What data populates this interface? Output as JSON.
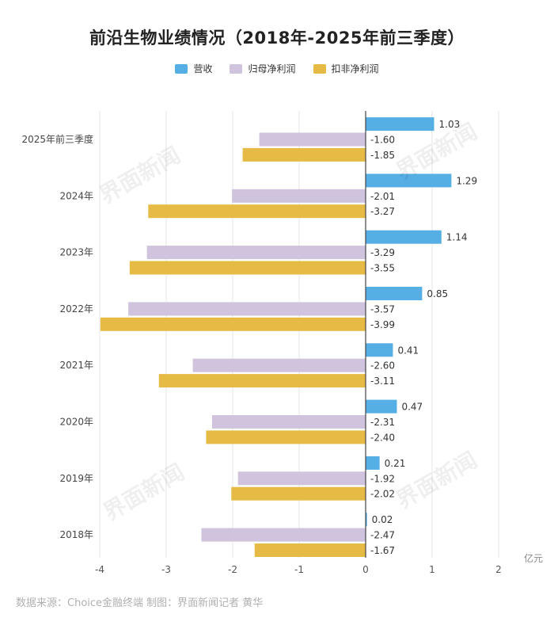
{
  "title": "前沿生物业绩情况（2018年-2025年前三季度）",
  "unit": "亿元",
  "footer": "数据来源：Choice金融终端 制图：界面新闻记者 黄华",
  "watermark": "界面新闻",
  "colors": {
    "revenue": "#55aee4",
    "net_profit": "#cfc3dd",
    "non_gaap": "#e5bb45",
    "axis": "#444444",
    "grid": "#e6e6e6"
  },
  "chart_data": {
    "type": "bar",
    "orientation": "horizontal",
    "categories": [
      "2025年前三季度",
      "2024年",
      "2023年",
      "2022年",
      "2021年",
      "2020年",
      "2019年",
      "2018年"
    ],
    "series": [
      {
        "name": "营收",
        "key": "revenue",
        "values": [
          1.03,
          1.29,
          1.14,
          0.85,
          0.41,
          0.47,
          0.21,
          0.02
        ],
        "labels": [
          "1.03",
          "1.29",
          "1.14",
          "0.85",
          "0.41",
          "0.47",
          "0.21",
          "0.02"
        ]
      },
      {
        "name": "归母净利润",
        "key": "net_profit",
        "values": [
          -1.6,
          -2.01,
          -3.29,
          -3.57,
          -2.6,
          -2.31,
          -1.92,
          -2.47
        ],
        "labels": [
          "-1.60",
          "-2.01",
          "-3.29",
          "-3.57",
          "-2.60",
          "-2.31",
          "-1.92",
          "-2.47"
        ]
      },
      {
        "name": "扣非净利润",
        "key": "non_gaap",
        "values": [
          -1.85,
          -3.27,
          -3.55,
          -3.99,
          -3.11,
          -2.4,
          -2.02,
          -1.67
        ],
        "labels": [
          "-1.85",
          "-3.27",
          "-3.55",
          "-3.99",
          "-3.11",
          "-2.40",
          "-2.02",
          "-1.67"
        ]
      }
    ],
    "xlim": [
      -4,
      2
    ],
    "xticks": [
      -4,
      -3,
      -2,
      -1,
      0,
      1,
      2
    ],
    "xtick_labels": [
      "-4",
      "-3",
      "-2",
      "-1",
      "0",
      "1",
      "2"
    ],
    "xlabel": "亿元",
    "grid": true,
    "legend": "top-center"
  }
}
